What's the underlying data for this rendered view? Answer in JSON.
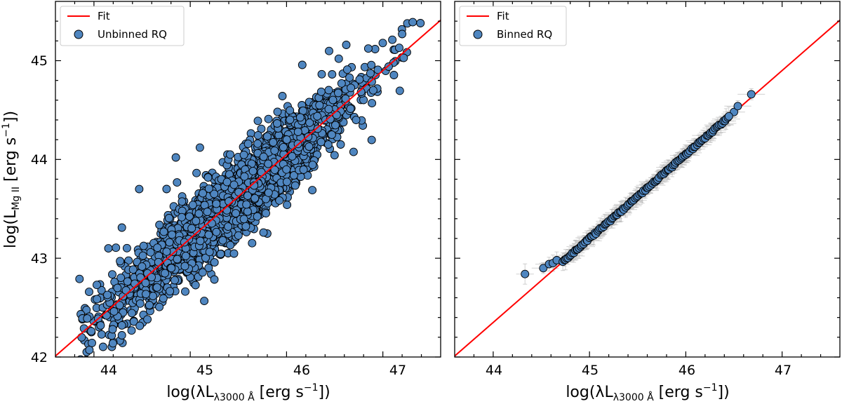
{
  "chart_data": [
    {
      "type": "scatter",
      "panel": "left",
      "xlim": [
        43.6,
        47.6
      ],
      "ylim": [
        42.0,
        45.6
      ],
      "xticks": [
        44,
        45,
        46,
        47
      ],
      "yticks": [
        42,
        43,
        44,
        45
      ],
      "xlabel": "log(λLλ3000 Å [erg s⁻¹])",
      "ylabel": "log(L Mg II [erg s⁻¹])",
      "legend": [
        "Fit",
        "Unbinned RQ"
      ],
      "legend_position": "upper-left",
      "fit_line": {
        "slope": 0.85,
        "intercept": 4.95
      },
      "series": [
        {
          "name": "Unbinned RQ",
          "cloud": {
            "x_range": [
              43.85,
              47.4
            ],
            "scatter_dex": 0.28,
            "points": 2500
          },
          "points": [
            [
              43.85,
              42.79
            ],
            [
              43.93,
              42.39
            ],
            [
              43.95,
              42.66
            ],
            [
              44.03,
              42.73
            ],
            [
              44.29,
              42.22
            ],
            [
              44.29,
              42.32
            ],
            [
              44.29,
              43.31
            ],
            [
              44.15,
              43.1
            ],
            [
              44.47,
              43.7
            ],
            [
              44.85,
              44.02
            ],
            [
              45.1,
              44.12
            ],
            [
              46.47,
              44.25
            ],
            [
              46.52,
              44.45
            ],
            [
              46.9,
              44.7
            ],
            [
              47.06,
              44.94
            ],
            [
              47.17,
              45.13
            ],
            [
              47.31,
              45.39
            ],
            [
              47.39,
              45.38
            ],
            [
              47.2,
              45.27
            ],
            [
              46.62,
              45.16
            ]
          ]
        }
      ],
      "colors": {
        "marker": "#4f86c0",
        "marker_edge": "#000000",
        "fit": "#ff0000"
      }
    },
    {
      "type": "scatter",
      "panel": "right",
      "xlim": [
        43.6,
        47.6
      ],
      "ylim": [
        42.0,
        45.6
      ],
      "xticks": [
        44,
        45,
        46,
        47
      ],
      "yticks": [
        42,
        43,
        44,
        45
      ],
      "xlabel": "log(λLλ3000 Å [erg s⁻¹])",
      "legend": [
        "Fit",
        "Binned RQ"
      ],
      "legend_position": "upper-left",
      "fit_line": {
        "slope": 0.85,
        "intercept": 4.95
      },
      "series": [
        {
          "name": "Binned RQ",
          "binned": {
            "x_range": [
              44.33,
              46.68
            ],
            "n_bins": 120,
            "xerr_dex": 0.12,
            "yerr_dex": 0.07
          },
          "points": [
            [
              44.33,
              42.84
            ],
            [
              44.52,
              42.9
            ],
            [
              44.58,
              42.94
            ],
            [
              44.62,
              42.95
            ],
            [
              44.66,
              42.98
            ],
            [
              46.5,
              44.48
            ],
            [
              46.54,
              44.54
            ],
            [
              46.68,
              44.66
            ]
          ]
        }
      ],
      "colors": {
        "marker": "#4f86c0",
        "marker_edge": "#000000",
        "fit": "#ff0000",
        "error": "#b0b0b0"
      }
    }
  ],
  "labels": {
    "left_ylabel_pre": "log(L",
    "left_ylabel_sub": "Mg II",
    "ylabel_post": " [erg s",
    "ylabel_sup": "−1",
    "ylabel_end": "])",
    "xlabel_pre": "log(λL",
    "xlabel_sub": "λ3000 Å",
    "xlabel_post": " [erg s",
    "xlabel_sup": "−1",
    "xlabel_end": "])",
    "left_legend_fit": "Fit",
    "left_legend_data": "Unbinned RQ",
    "right_legend_fit": "Fit",
    "right_legend_data": "Binned RQ",
    "xtick_44": "44",
    "xtick_45": "45",
    "xtick_46": "46",
    "xtick_47": "47",
    "ytick_42": "42",
    "ytick_43": "43",
    "ytick_44": "44",
    "ytick_45": "45"
  }
}
